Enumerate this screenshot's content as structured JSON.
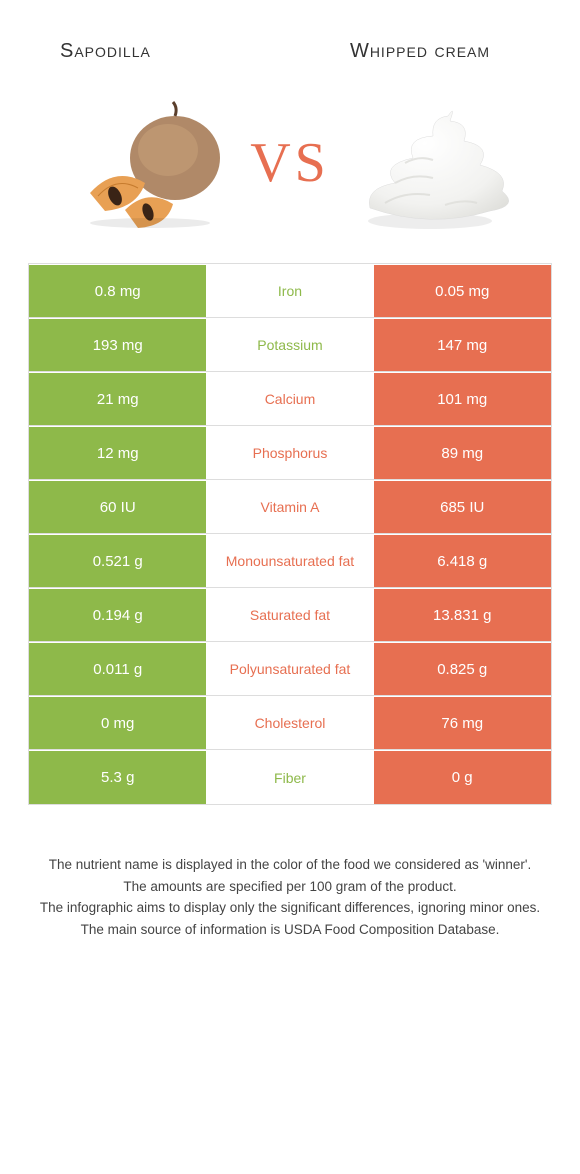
{
  "colors": {
    "left_bg": "#8eb94a",
    "right_bg": "#e76f51",
    "cell_text": "#ffffff",
    "mid_bg": "#ffffff",
    "vs": "#e76f51",
    "border": "#dddddd",
    "footer_text": "#444444"
  },
  "header": {
    "left": "Sapodilla",
    "right": "Whipped cream"
  },
  "vs": "VS",
  "rows": [
    {
      "nutrient": "Iron",
      "left": "0.8 mg",
      "right": "0.05 mg",
      "winner": "left"
    },
    {
      "nutrient": "Potassium",
      "left": "193 mg",
      "right": "147 mg",
      "winner": "left"
    },
    {
      "nutrient": "Calcium",
      "left": "21 mg",
      "right": "101 mg",
      "winner": "right"
    },
    {
      "nutrient": "Phosphorus",
      "left": "12 mg",
      "right": "89 mg",
      "winner": "right"
    },
    {
      "nutrient": "Vitamin A",
      "left": "60 IU",
      "right": "685 IU",
      "winner": "right"
    },
    {
      "nutrient": "Monounsaturated fat",
      "left": "0.521 g",
      "right": "6.418 g",
      "winner": "right"
    },
    {
      "nutrient": "Saturated fat",
      "left": "0.194 g",
      "right": "13.831 g",
      "winner": "right"
    },
    {
      "nutrient": "Polyunsaturated fat",
      "left": "0.011 g",
      "right": "0.825 g",
      "winner": "right"
    },
    {
      "nutrient": "Cholesterol",
      "left": "0 mg",
      "right": "76 mg",
      "winner": "right"
    },
    {
      "nutrient": "Fiber",
      "left": "5.3 g",
      "right": "0 g",
      "winner": "left"
    }
  ],
  "footer": [
    "The nutrient name is displayed in the color of the food we considered as 'winner'.",
    "The amounts are specified per 100 gram of the product.",
    "The infographic aims to display only the significant differences, ignoring minor ones.",
    "The main source of information is USDA Food Composition Database."
  ]
}
